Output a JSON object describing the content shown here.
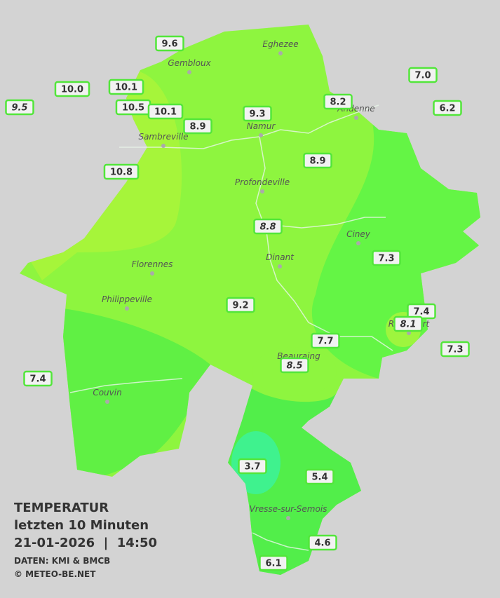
{
  "title": {
    "heading": "TEMPERATUR",
    "period": "letzten 10 Minuten",
    "datetime": "21-01-2026  |  14:50",
    "source": "DATEN: KMI & BMCB",
    "copyright": "© METEO-BE.NET"
  },
  "cities": [
    {
      "name": "Eghezee"
    },
    {
      "name": "Gembloux"
    },
    {
      "name": "Andenne"
    },
    {
      "name": "Namur"
    },
    {
      "name": "Sambreville"
    },
    {
      "name": "Profondeville"
    },
    {
      "name": "Ciney"
    },
    {
      "name": "Dinant"
    },
    {
      "name": "Florennes"
    },
    {
      "name": "Philippeville"
    },
    {
      "name": "Rochefort"
    },
    {
      "name": "Beauraing"
    },
    {
      "name": "Couvin"
    },
    {
      "name": "Vresse-sur-Semois"
    }
  ],
  "stations": [
    {
      "label": "9.6"
    },
    {
      "label": "10.0"
    },
    {
      "label": "10.1"
    },
    {
      "label": "9.5"
    },
    {
      "label": "10.5"
    },
    {
      "label": "10.1"
    },
    {
      "label": "8.9"
    },
    {
      "label": "9.3"
    },
    {
      "label": "8.2"
    },
    {
      "label": "7.0"
    },
    {
      "label": "6.2"
    },
    {
      "label": "10.8"
    },
    {
      "label": "8.9"
    },
    {
      "label": "8.8"
    },
    {
      "label": "7.3"
    },
    {
      "label": "9.2"
    },
    {
      "label": "7.4"
    },
    {
      "label": "8.1"
    },
    {
      "label": "7.7"
    },
    {
      "label": "7.3"
    },
    {
      "label": "8.5"
    },
    {
      "label": "7.4"
    },
    {
      "label": "3.7"
    },
    {
      "label": "5.4"
    },
    {
      "label": "4.6"
    },
    {
      "label": "6.1"
    }
  ]
}
